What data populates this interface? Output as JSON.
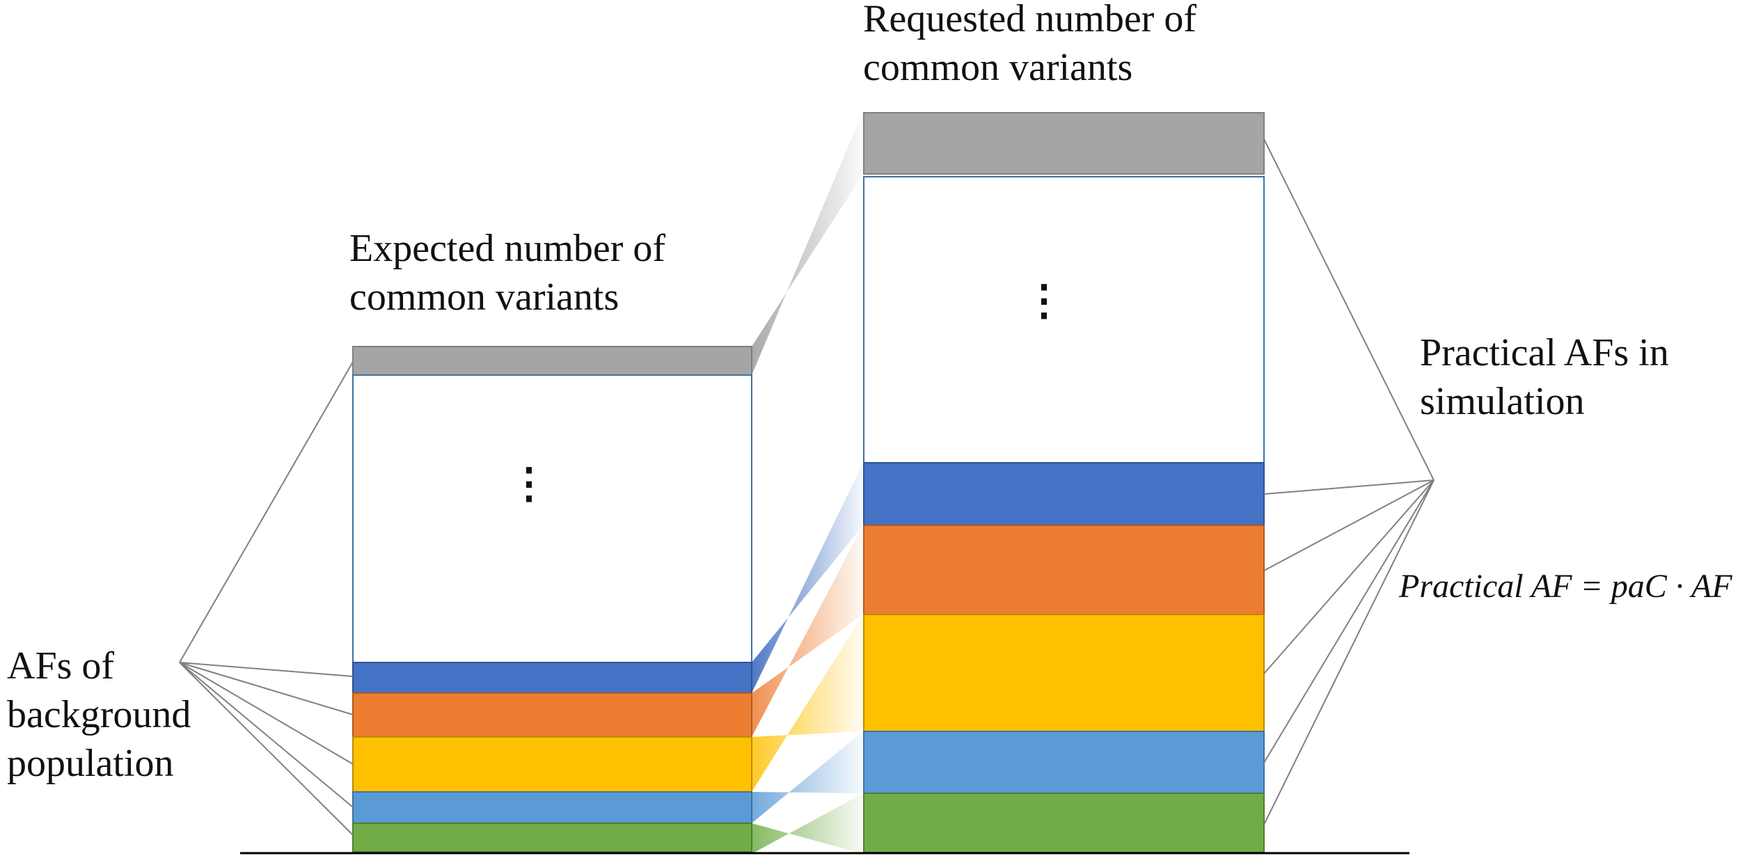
{
  "labels": {
    "expected_line1": "Expected number of",
    "expected_line2": "common variants",
    "requested_line1": "Requested number of",
    "requested_line2": "common variants",
    "practical_line1": "Practical AFs in",
    "practical_line2": "simulation",
    "background_line1": "AFs of",
    "background_line2": "background",
    "background_line3": "population",
    "formula": "Practical AF = paC · AF",
    "ellipsis": "⋮"
  },
  "colors": {
    "gray": "#A5A5A5",
    "blue": "#4472C4",
    "orange": "#ED7D31",
    "yellow": "#FFC000",
    "light_blue": "#5B9BD5",
    "green": "#70AD47",
    "outline": "#41719C",
    "connector": "#808080",
    "baseline": "#000000"
  },
  "stacks": {
    "left": {
      "segments": [
        "gray",
        "white",
        "blue",
        "orange",
        "yellow",
        "light_blue",
        "green"
      ]
    },
    "right": {
      "segments": [
        "gray",
        "white",
        "blue",
        "orange",
        "yellow",
        "light_blue",
        "green"
      ]
    }
  }
}
